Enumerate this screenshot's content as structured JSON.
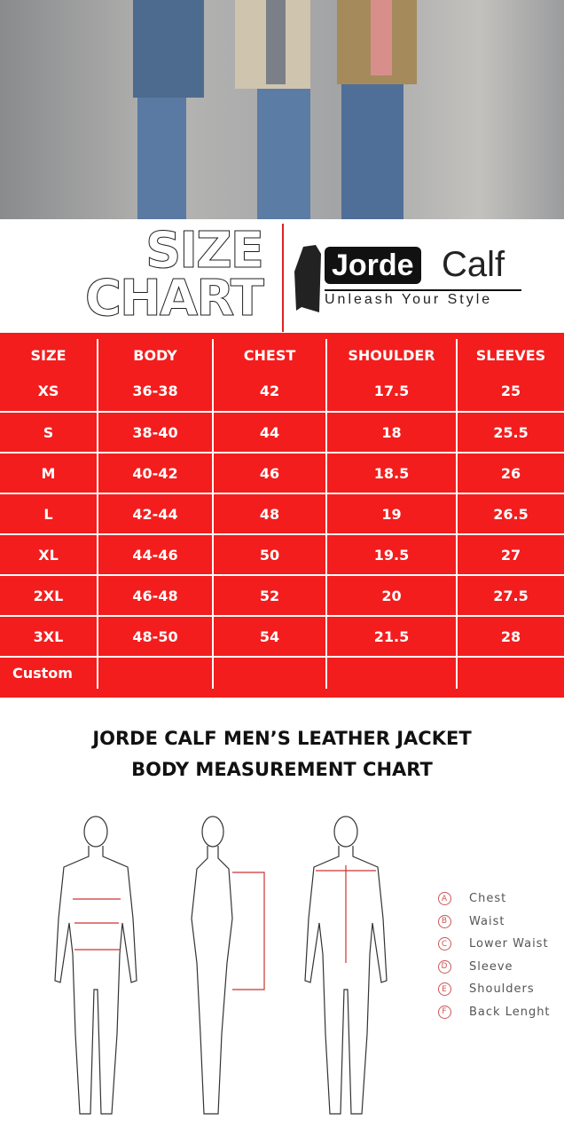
{
  "heading": {
    "line1": "SIZE",
    "line2": "CHART"
  },
  "logo": {
    "brand_dark": "Jorde",
    "brand_light": "Calf",
    "tagline": "Unleash Your Style"
  },
  "table": {
    "headers": [
      "SIZE",
      "BODY",
      "CHEST",
      "SHOULDER",
      "SLEEVES"
    ],
    "rows": [
      [
        "XS",
        "36-38",
        "42",
        "17.5",
        "25"
      ],
      [
        "S",
        "38-40",
        "44",
        "18",
        "25.5"
      ],
      [
        "M",
        "40-42",
        "46",
        "18.5",
        "26"
      ],
      [
        "L",
        "42-44",
        "48",
        "19",
        "26.5"
      ],
      [
        "XL",
        "44-46",
        "50",
        "19.5",
        "27"
      ],
      [
        "2XL",
        "46-48",
        "52",
        "20",
        "27.5"
      ],
      [
        "3XL",
        "48-50",
        "54",
        "21.5",
        "28"
      ],
      [
        "Custom",
        "",
        "",
        "",
        ""
      ]
    ]
  },
  "title": {
    "line1": "JORDE CALF MEN’S LEATHER JACKET",
    "line2": "BODY MEASUREMENT CHART"
  },
  "legend": [
    {
      "letter": "A",
      "label": "Chest"
    },
    {
      "letter": "B",
      "label": "Waist"
    },
    {
      "letter": "C",
      "label": "Lower Waist"
    },
    {
      "letter": "D",
      "label": "Sleeve"
    },
    {
      "letter": "E",
      "label": "Shoulders"
    },
    {
      "letter": "F",
      "label": "Back Lenght"
    }
  ],
  "colors": {
    "table_red": "#f31d1d",
    "accent": "#d22222"
  }
}
